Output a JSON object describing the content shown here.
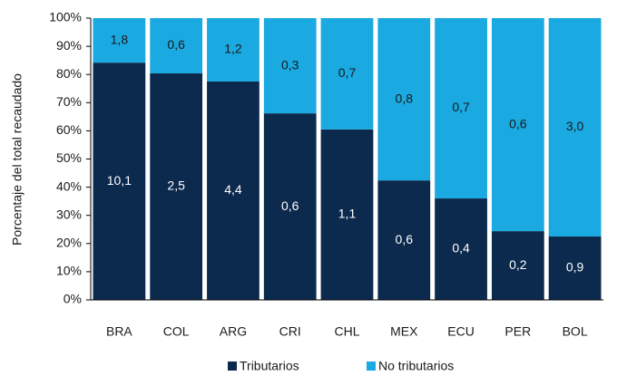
{
  "chart_data": {
    "type": "stacked_bar",
    "y_label": "Porcentaje del total recaudado",
    "categories": [
      "BRA",
      "COL",
      "ARG",
      "CRI",
      "CHL",
      "MEX",
      "ECU",
      "PER",
      "BOL"
    ],
    "series": [
      {
        "name": "Tributarios",
        "color": "#0c2a4d",
        "label_color": "#ffffff",
        "values": [
          84.2,
          80.4,
          77.5,
          66.2,
          60.5,
          42.4,
          36.0,
          24.4,
          22.5
        ],
        "amounts": [
          "10,1",
          "2,5",
          "4,4",
          "0,6",
          "1,1",
          "0,6",
          "0,4",
          "0,2",
          "0,9"
        ]
      },
      {
        "name": "No tributarios",
        "color": "#1aa9e0",
        "label_color": "#1a1a1a",
        "values": [
          15.8,
          19.6,
          22.5,
          33.8,
          39.5,
          57.6,
          64.0,
          75.6,
          77.5
        ],
        "amounts": [
          "1,8",
          "0,6",
          "1,2",
          "0,3",
          "0,7",
          "0,8",
          "0,7",
          "0,6",
          "3,0"
        ]
      }
    ],
    "ylim": [
      0,
      100
    ],
    "yticks": [
      {
        "value": 0,
        "label": "0%"
      },
      {
        "value": 10,
        "label": "10%"
      },
      {
        "value": 20,
        "label": "20%"
      },
      {
        "value": 30,
        "label": "30%"
      },
      {
        "value": 40,
        "label": "40%"
      },
      {
        "value": 50,
        "label": "50%"
      },
      {
        "value": 60,
        "label": "60%"
      },
      {
        "value": 70,
        "label": "70%"
      },
      {
        "value": 80,
        "label": "80%"
      },
      {
        "value": 90,
        "label": "90%"
      },
      {
        "value": 100,
        "label": "100%"
      }
    ],
    "legend": "bottom"
  }
}
